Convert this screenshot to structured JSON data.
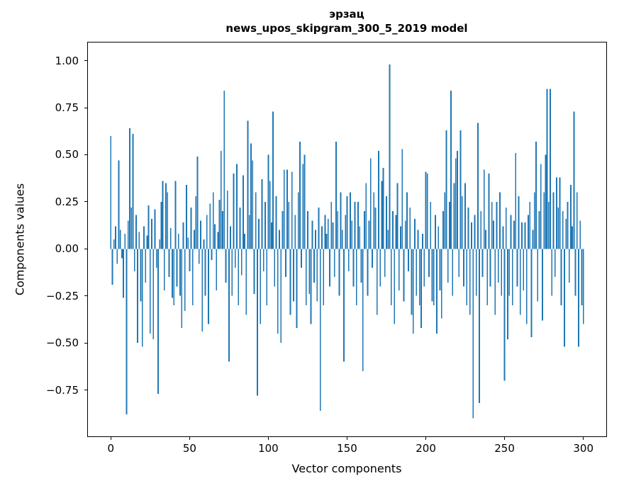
{
  "chart_data": {
    "type": "bar",
    "title": "эрзац",
    "subtitle": "news_upos_skipgram_300_5_2019 model",
    "xlabel": "Vector components",
    "ylabel": "Components values",
    "xlim": [
      -15,
      315
    ],
    "ylim": [
      -1.0,
      1.1
    ],
    "bar_color": "#1f77b4",
    "bar_width_data": 0.8,
    "grid": false,
    "legend": "none",
    "xticks": [
      {
        "value": 0,
        "label": "0"
      },
      {
        "value": 50,
        "label": "50"
      },
      {
        "value": 100,
        "label": "100"
      },
      {
        "value": 150,
        "label": "150"
      },
      {
        "value": 200,
        "label": "200"
      },
      {
        "value": 250,
        "label": "250"
      },
      {
        "value": 300,
        "label": "300"
      }
    ],
    "yticks": [
      {
        "value": 1.0,
        "label": "1.00"
      },
      {
        "value": 0.75,
        "label": "0.75"
      },
      {
        "value": 0.5,
        "label": "0.50"
      },
      {
        "value": 0.25,
        "label": "0.25"
      },
      {
        "value": 0.0,
        "label": "0.00"
      },
      {
        "value": -0.25,
        "label": "−0.25"
      },
      {
        "value": -0.5,
        "label": "−0.50"
      },
      {
        "value": -0.75,
        "label": "−0.75"
      }
    ],
    "x_start": 0,
    "values": [
      0.6,
      -0.19,
      0.05,
      0.12,
      -0.08,
      0.47,
      0.1,
      -0.05,
      -0.26,
      0.08,
      -0.88,
      0.15,
      0.64,
      0.22,
      0.61,
      -0.12,
      0.18,
      -0.5,
      0.09,
      -0.28,
      -0.52,
      0.12,
      -0.18,
      0.07,
      0.23,
      -0.45,
      0.16,
      -0.48,
      0.21,
      -0.1,
      -0.77,
      0.05,
      0.25,
      0.36,
      -0.22,
      0.35,
      0.3,
      -0.15,
      0.11,
      -0.26,
      -0.3,
      0.36,
      -0.2,
      0.08,
      -0.25,
      -0.42,
      0.14,
      -0.33,
      0.34,
      0.06,
      -0.12,
      0.22,
      -0.3,
      0.1,
      0.28,
      0.49,
      -0.08,
      0.15,
      -0.44,
      0.05,
      -0.25,
      0.18,
      -0.4,
      0.24,
      -0.06,
      0.3,
      0.13,
      -0.22,
      0.09,
      0.26,
      0.52,
      0.2,
      0.84,
      -0.18,
      0.31,
      -0.6,
      0.12,
      -0.25,
      0.4,
      -0.1,
      0.45,
      -0.3,
      0.22,
      -0.14,
      0.39,
      0.08,
      -0.35,
      0.68,
      0.18,
      0.56,
      0.47,
      -0.24,
      0.3,
      -0.78,
      0.16,
      -0.4,
      0.37,
      -0.12,
      0.25,
      -0.3,
      0.5,
      0.36,
      0.14,
      0.73,
      -0.2,
      0.28,
      -0.45,
      0.1,
      -0.5,
      0.2,
      0.42,
      -0.15,
      0.42,
      0.25,
      -0.35,
      0.41,
      -0.28,
      0.18,
      -0.42,
      0.3,
      0.57,
      -0.1,
      0.45,
      0.5,
      -0.3,
      0.2,
      -0.24,
      -0.4,
      0.15,
      -0.18,
      0.1,
      -0.28,
      0.22,
      -0.86,
      0.12,
      -0.3,
      0.18,
      0.08,
      0.16,
      -0.2,
      0.25,
      0.14,
      -0.15,
      0.57,
      0.2,
      -0.25,
      0.3,
      0.1,
      -0.6,
      0.18,
      0.28,
      -0.12,
      0.3,
      0.15,
      -0.2,
      0.25,
      -0.3,
      0.25,
      0.12,
      -0.18,
      -0.65,
      0.2,
      0.35,
      -0.25,
      0.15,
      0.48,
      -0.1,
      0.3,
      0.22,
      -0.35,
      0.52,
      -0.2,
      0.36,
      0.43,
      -0.15,
      0.28,
      0.1,
      0.98,
      -0.3,
      0.2,
      -0.4,
      0.18,
      0.35,
      -0.22,
      0.12,
      0.53,
      -0.28,
      0.15,
      0.3,
      -0.12,
      0.22,
      -0.35,
      -0.45,
      0.16,
      -0.25,
      0.1,
      -0.3,
      -0.42,
      0.08,
      -0.2,
      0.41,
      0.4,
      -0.15,
      0.25,
      -0.28,
      -0.3,
      0.18,
      -0.45,
      0.12,
      -0.22,
      -0.37,
      0.2,
      0.3,
      0.63,
      -0.18,
      0.25,
      0.84,
      -0.25,
      0.35,
      0.48,
      0.52,
      -0.15,
      0.63,
      0.28,
      -0.2,
      0.35,
      -0.3,
      0.22,
      -0.35,
      0.14,
      -0.9,
      0.18,
      -0.25,
      0.67,
      -0.82,
      0.2,
      -0.15,
      0.42,
      0.1,
      -0.3,
      0.4,
      -0.2,
      0.25,
      0.15,
      -0.35,
      0.25,
      -0.18,
      0.3,
      -0.25,
      0.12,
      -0.7,
      0.22,
      -0.48,
      -0.25,
      0.18,
      -0.3,
      0.15,
      0.51,
      -0.2,
      0.28,
      -0.35,
      0.14,
      -0.22,
      0.14,
      -0.4,
      0.18,
      0.25,
      -0.47,
      0.1,
      0.3,
      0.57,
      -0.28,
      0.2,
      0.45,
      -0.38,
      0.3,
      0.5,
      0.85,
      0.25,
      0.85,
      -0.25,
      0.3,
      -0.15,
      0.38,
      0.22,
      0.38,
      -0.3,
      0.2,
      -0.52,
      0.16,
      0.25,
      -0.18,
      0.34,
      0.12,
      0.73,
      -0.25,
      0.3,
      -0.52,
      0.15,
      -0.3,
      -0.4
    ]
  }
}
